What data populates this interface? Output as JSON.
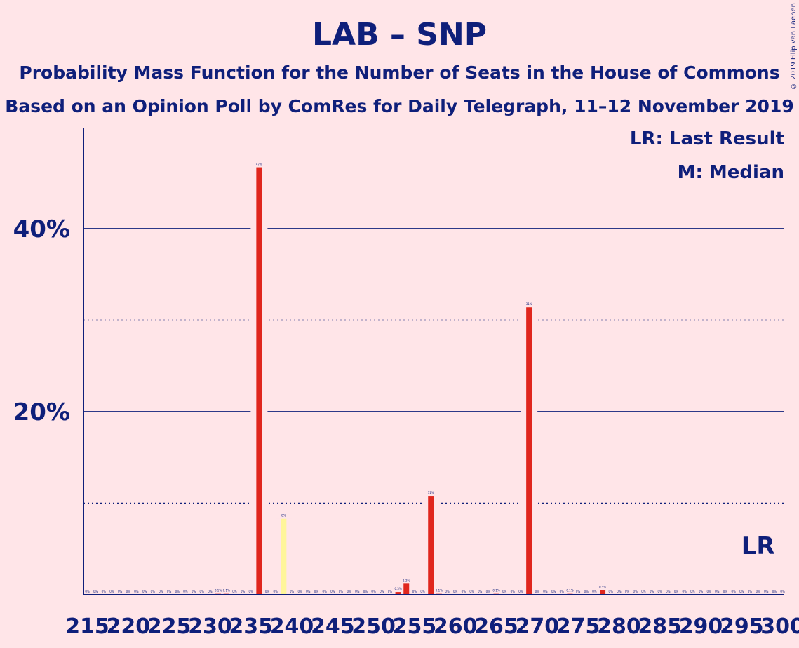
{
  "title": "LAB – SNP",
  "subtitle1": "Probability Mass Function for the Number of Seats in the House of Commons",
  "subtitle2": "Based on an Opinion Poll by ComRes for Daily Telegraph, 11–12 November 2019",
  "copyright": "© 2019 Filip van Laenen",
  "legend": {
    "last_result": "LR: Last Result",
    "median": "M: Median"
  },
  "colors": {
    "background": "#FFE5E8",
    "text": "#0F1F7A",
    "bar": "#E0261D",
    "median_bar": "#FFF59A"
  },
  "chart_data": {
    "type": "bar",
    "x_range": [
      215,
      300
    ],
    "y_range": [
      0,
      50
    ],
    "yticks": [
      {
        "value": 20,
        "label": "20%"
      },
      {
        "value": 40,
        "label": "40%"
      }
    ],
    "minor_gridlines": [
      10,
      30
    ],
    "xticks": [
      215,
      220,
      225,
      230,
      235,
      240,
      245,
      250,
      255,
      260,
      265,
      270,
      275,
      280,
      285,
      290,
      295,
      300
    ],
    "median": 239,
    "last_result": 297,
    "last_result_label": "LR",
    "bars": [
      {
        "x": 215,
        "value": 0,
        "label": "0%"
      },
      {
        "x": 216,
        "value": 0,
        "label": "0%"
      },
      {
        "x": 217,
        "value": 0,
        "label": "0%"
      },
      {
        "x": 218,
        "value": 0,
        "label": "0%"
      },
      {
        "x": 219,
        "value": 0,
        "label": "0%"
      },
      {
        "x": 220,
        "value": 0,
        "label": "0%"
      },
      {
        "x": 221,
        "value": 0,
        "label": "0%"
      },
      {
        "x": 222,
        "value": 0,
        "label": "0%"
      },
      {
        "x": 223,
        "value": 0,
        "label": "0%"
      },
      {
        "x": 224,
        "value": 0,
        "label": "0%"
      },
      {
        "x": 225,
        "value": 0,
        "label": "0%"
      },
      {
        "x": 226,
        "value": 0,
        "label": "0%"
      },
      {
        "x": 227,
        "value": 0,
        "label": "0%"
      },
      {
        "x": 228,
        "value": 0,
        "label": "0%"
      },
      {
        "x": 229,
        "value": 0,
        "label": "0%"
      },
      {
        "x": 230,
        "value": 0,
        "label": "0%"
      },
      {
        "x": 231,
        "value": 0.1,
        "label": "0.1%"
      },
      {
        "x": 232,
        "value": 0.1,
        "label": "0.1%"
      },
      {
        "x": 233,
        "value": 0,
        "label": "0%"
      },
      {
        "x": 234,
        "value": 0,
        "label": "0%"
      },
      {
        "x": 235,
        "value": 0,
        "label": "0%"
      },
      {
        "x": 236,
        "value": 46.7,
        "label": "47%"
      },
      {
        "x": 237,
        "value": 0,
        "label": "0%"
      },
      {
        "x": 238,
        "value": 0,
        "label": "0%"
      },
      {
        "x": 239,
        "value": 8.3,
        "label": "8%"
      },
      {
        "x": 240,
        "value": 0,
        "label": "0%"
      },
      {
        "x": 241,
        "value": 0,
        "label": "0%"
      },
      {
        "x": 242,
        "value": 0,
        "label": "0%"
      },
      {
        "x": 243,
        "value": 0,
        "label": "0%"
      },
      {
        "x": 244,
        "value": 0,
        "label": "0%"
      },
      {
        "x": 245,
        "value": 0,
        "label": "0%"
      },
      {
        "x": 246,
        "value": 0,
        "label": "0%"
      },
      {
        "x": 247,
        "value": 0,
        "label": "0%"
      },
      {
        "x": 248,
        "value": 0,
        "label": "0%"
      },
      {
        "x": 249,
        "value": 0,
        "label": "0%"
      },
      {
        "x": 250,
        "value": 0,
        "label": "0%"
      },
      {
        "x": 251,
        "value": 0,
        "label": "0%"
      },
      {
        "x": 252,
        "value": 0,
        "label": "0%"
      },
      {
        "x": 253,
        "value": 0.3,
        "label": "0.3%"
      },
      {
        "x": 254,
        "value": 1.2,
        "label": "1.2%"
      },
      {
        "x": 255,
        "value": 0,
        "label": "0%"
      },
      {
        "x": 256,
        "value": 0,
        "label": "0%"
      },
      {
        "x": 257,
        "value": 10.8,
        "label": "11%"
      },
      {
        "x": 258,
        "value": 0.1,
        "label": "0.1%"
      },
      {
        "x": 259,
        "value": 0,
        "label": "0%"
      },
      {
        "x": 260,
        "value": 0,
        "label": "0%"
      },
      {
        "x": 261,
        "value": 0,
        "label": "0%"
      },
      {
        "x": 262,
        "value": 0,
        "label": "0%"
      },
      {
        "x": 263,
        "value": 0,
        "label": "0%"
      },
      {
        "x": 264,
        "value": 0,
        "label": "0%"
      },
      {
        "x": 265,
        "value": 0.1,
        "label": "0.1%"
      },
      {
        "x": 266,
        "value": 0,
        "label": "0%"
      },
      {
        "x": 267,
        "value": 0,
        "label": "0%"
      },
      {
        "x": 268,
        "value": 0,
        "label": "0%"
      },
      {
        "x": 269,
        "value": 31.4,
        "label": "31%"
      },
      {
        "x": 270,
        "value": 0,
        "label": "0%"
      },
      {
        "x": 271,
        "value": 0,
        "label": "0%"
      },
      {
        "x": 272,
        "value": 0,
        "label": "0%"
      },
      {
        "x": 273,
        "value": 0,
        "label": "0%"
      },
      {
        "x": 274,
        "value": 0.1,
        "label": "0.1%"
      },
      {
        "x": 275,
        "value": 0,
        "label": "0%"
      },
      {
        "x": 276,
        "value": 0,
        "label": "0%"
      },
      {
        "x": 277,
        "value": 0,
        "label": "0%"
      },
      {
        "x": 278,
        "value": 0.5,
        "label": "0.5%"
      },
      {
        "x": 279,
        "value": 0,
        "label": "0%"
      },
      {
        "x": 280,
        "value": 0,
        "label": "0%"
      },
      {
        "x": 281,
        "value": 0,
        "label": "0%"
      },
      {
        "x": 282,
        "value": 0,
        "label": "0%"
      },
      {
        "x": 283,
        "value": 0,
        "label": "0%"
      },
      {
        "x": 284,
        "value": 0,
        "label": "0%"
      },
      {
        "x": 285,
        "value": 0,
        "label": "0%"
      },
      {
        "x": 286,
        "value": 0,
        "label": "0%"
      },
      {
        "x": 287,
        "value": 0,
        "label": "0%"
      },
      {
        "x": 288,
        "value": 0,
        "label": "0%"
      },
      {
        "x": 289,
        "value": 0,
        "label": "0%"
      },
      {
        "x": 290,
        "value": 0,
        "label": "0%"
      },
      {
        "x": 291,
        "value": 0,
        "label": "0%"
      },
      {
        "x": 292,
        "value": 0,
        "label": "0%"
      },
      {
        "x": 293,
        "value": 0,
        "label": "0%"
      },
      {
        "x": 294,
        "value": 0,
        "label": "0%"
      },
      {
        "x": 295,
        "value": 0,
        "label": "0%"
      },
      {
        "x": 296,
        "value": 0,
        "label": "0%"
      },
      {
        "x": 297,
        "value": 0,
        "label": "0%"
      },
      {
        "x": 298,
        "value": 0,
        "label": "0%"
      },
      {
        "x": 299,
        "value": 0,
        "label": "0%"
      },
      {
        "x": 300,
        "value": 0,
        "label": "0%"
      }
    ]
  }
}
